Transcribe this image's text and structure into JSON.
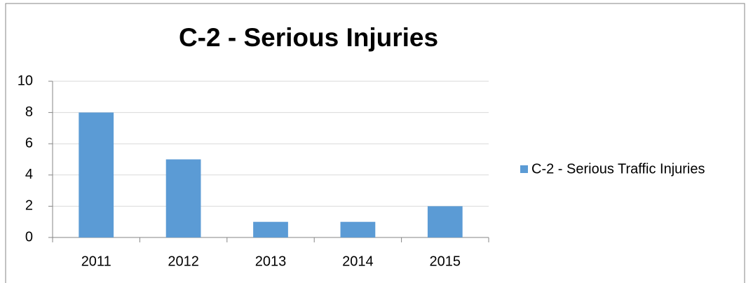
{
  "chart_data": {
    "type": "bar",
    "title": "C-2 - Serious Injuries",
    "categories": [
      "2011",
      "2012",
      "2013",
      "2014",
      "2015"
    ],
    "series": [
      {
        "name": "C-2 - Serious Traffic Injuries",
        "color": "#5b9bd5",
        "values": [
          8,
          5,
          1,
          1,
          2
        ]
      }
    ],
    "ylim": [
      0,
      10
    ],
    "yticks": [
      0,
      2,
      4,
      6,
      8,
      10
    ],
    "grid": true,
    "legend": "right"
  }
}
